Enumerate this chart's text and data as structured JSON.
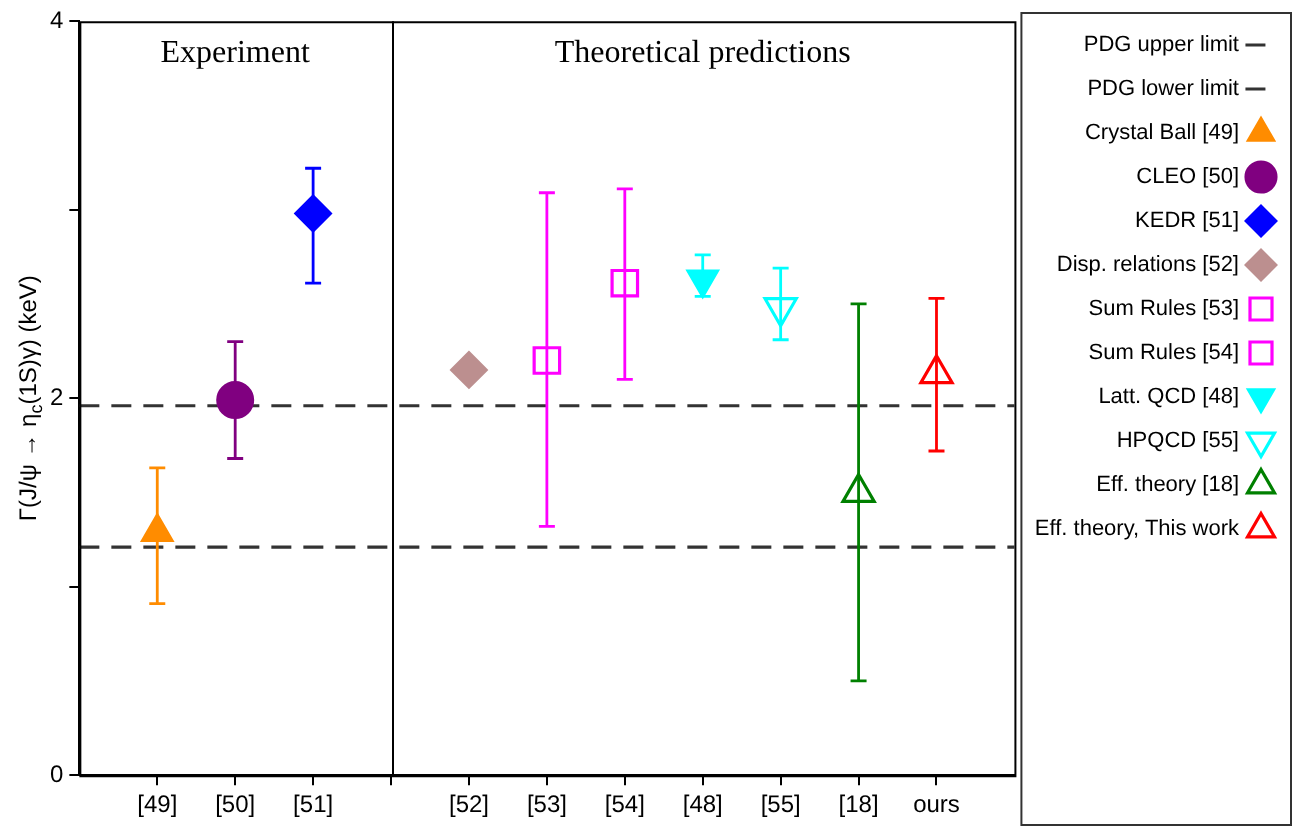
{
  "chart_data": {
    "type": "scatter",
    "ylabel": "Γ(J/ψ → η$_{c}$(1S)γ) (keV)",
    "categories": [
      "[49]",
      "[50]",
      "[51]",
      null,
      "[52]",
      "[53]",
      "[54]",
      "[48]",
      "[55]",
      "[18]",
      "ours"
    ],
    "ylim": [
      0,
      4
    ],
    "yticks": [
      0,
      {
        "value": 1,
        "label": null
      },
      2,
      {
        "value": 3,
        "label": null
      },
      4
    ],
    "legend": "right",
    "annotations": [
      "Experiment",
      "Theoretical predictions"
    ],
    "ref_lines": [
      {
        "axis": "y",
        "value": 1.96,
        "label": "PDG upper limit",
        "color": "#333333",
        "line_style": "dashed"
      },
      {
        "axis": "y",
        "value": 1.21,
        "label": "PDG lower limit",
        "color": "#333333",
        "line_style": "dashed"
      }
    ],
    "series": [
      {
        "name": "Crystal Ball [49]",
        "color": "#ff8c00",
        "marker": "triangle",
        "values": [
          1.29,
          null,
          null,
          null,
          null,
          null,
          null,
          null,
          null,
          null,
          null
        ],
        "errors": [
          [
            0.91,
            1.63
          ],
          null,
          null,
          null,
          null,
          null,
          null,
          null,
          null,
          null,
          null
        ]
      },
      {
        "name": "CLEO [50]",
        "color": "#800080",
        "marker": "circle",
        "values": [
          null,
          1.99,
          null,
          null,
          null,
          null,
          null,
          null,
          null,
          null,
          null
        ],
        "errors": [
          null,
          [
            1.68,
            2.3
          ],
          null,
          null,
          null,
          null,
          null,
          null,
          null,
          null,
          null
        ]
      },
      {
        "name": "KEDR [51]",
        "color": "#0000ff",
        "marker": "diamond",
        "values": [
          null,
          null,
          2.98,
          null,
          null,
          null,
          null,
          null,
          null,
          null,
          null
        ],
        "errors": [
          null,
          null,
          [
            2.61,
            3.22
          ],
          null,
          null,
          null,
          null,
          null,
          null,
          null,
          null
        ]
      },
      {
        "name": "Disp. relations [52]",
        "color": "#bc8f8f",
        "marker": "diamond",
        "values": [
          null,
          null,
          null,
          null,
          2.15,
          null,
          null,
          null,
          null,
          null,
          null
        ]
      },
      {
        "name": "Sum Rules [53]",
        "color": "#ff00ff",
        "marker": "square-open",
        "values": [
          null,
          null,
          null,
          null,
          null,
          2.2,
          null,
          null,
          null,
          null,
          null
        ],
        "errors": [
          null,
          null,
          null,
          null,
          null,
          [
            1.32,
            3.09
          ],
          null,
          null,
          null,
          null,
          null
        ]
      },
      {
        "name": "Sum Rules [54]",
        "color": "#ff00ff",
        "marker": "square-open",
        "values": [
          null,
          null,
          null,
          null,
          null,
          null,
          2.61,
          null,
          null,
          null,
          null
        ],
        "errors": [
          null,
          null,
          null,
          null,
          null,
          null,
          [
            2.1,
            3.11
          ],
          null,
          null,
          null,
          null
        ]
      },
      {
        "name": "Latt. QCD [48]",
        "color": "#00ffff",
        "marker": "triangle-down",
        "values": [
          null,
          null,
          null,
          null,
          null,
          null,
          null,
          2.63,
          null,
          null,
          null
        ],
        "errors": [
          null,
          null,
          null,
          null,
          null,
          null,
          null,
          [
            2.54,
            2.76
          ],
          null,
          null,
          null
        ]
      },
      {
        "name": "HPQCD [55]",
        "color": "#00ffff",
        "marker": "triangle-down-open",
        "values": [
          null,
          null,
          null,
          null,
          null,
          null,
          null,
          null,
          2.48,
          null,
          null
        ],
        "errors": [
          null,
          null,
          null,
          null,
          null,
          null,
          null,
          null,
          [
            2.31,
            2.69
          ],
          null,
          null
        ]
      },
      {
        "name": "Eff. theory [18]",
        "color": "#008000",
        "marker": "triangle-open",
        "values": [
          null,
          null,
          null,
          null,
          null,
          null,
          null,
          null,
          null,
          1.5,
          null
        ],
        "errors": [
          null,
          null,
          null,
          null,
          null,
          null,
          null,
          null,
          null,
          [
            0.5,
            2.5
          ],
          null
        ]
      },
      {
        "name": "Eff. theory, This work",
        "color": "#ff0000",
        "marker": "triangle-open",
        "values": [
          null,
          null,
          null,
          null,
          null,
          null,
          null,
          null,
          null,
          null,
          2.13
        ],
        "errors": [
          null,
          null,
          null,
          null,
          null,
          null,
          null,
          null,
          null,
          null,
          [
            1.72,
            2.53
          ]
        ]
      }
    ]
  }
}
